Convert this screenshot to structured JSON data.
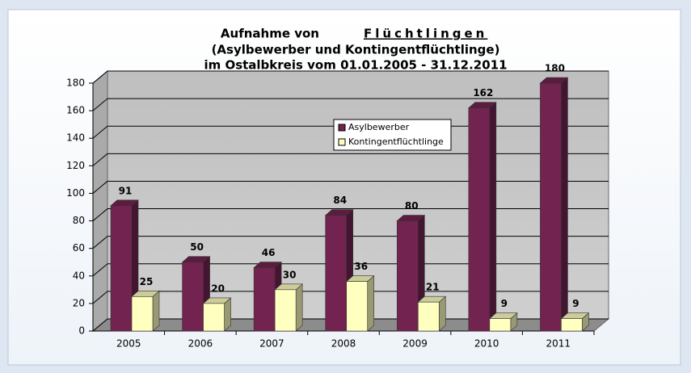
{
  "chart_data": {
    "type": "bar3d",
    "title": [
      "Aufnahme von",
      "Flüchtlingen",
      "(Asylbewerber und Kontingentflüchtlinge)",
      "im Ostalbkreis vom 01.01.2005 - 31.12.2011"
    ],
    "categories": [
      "2005",
      "2006",
      "2007",
      "2008",
      "2009",
      "2010",
      "2011"
    ],
    "series": [
      {
        "name": "Asylbewerber",
        "color": "#722350",
        "values": [
          91,
          50,
          46,
          84,
          80,
          162,
          180
        ]
      },
      {
        "name": "Kontingentflüchtlinge",
        "color": "#ffffc0",
        "values": [
          25,
          20,
          30,
          36,
          21,
          9,
          9
        ]
      }
    ],
    "ylim": [
      0,
      180
    ],
    "yticks": [
      0,
      20,
      40,
      60,
      80,
      100,
      120,
      140,
      160,
      180
    ],
    "grid": true
  }
}
